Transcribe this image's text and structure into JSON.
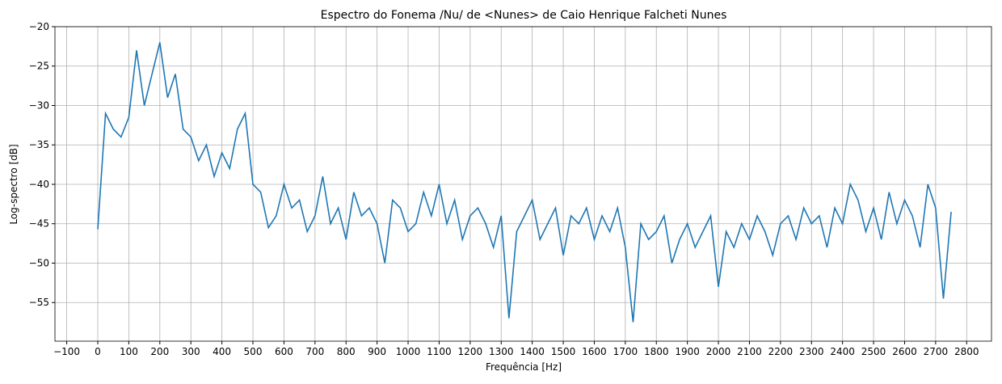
{
  "chart_data": {
    "type": "line",
    "title": "Espectro do Fonema /Nu/ de <Nunes> de Caio Henrique Falcheti Nunes",
    "xlabel": "Frequência [Hz]",
    "ylabel": "Log-spectro [dB]",
    "x": [
      0,
      25,
      50,
      75,
      100,
      125,
      150,
      175,
      200,
      225,
      250,
      275,
      300,
      325,
      350,
      375,
      400,
      425,
      450,
      475,
      500,
      525,
      550,
      575,
      600,
      625,
      650,
      675,
      700,
      725,
      750,
      775,
      800,
      825,
      850,
      875,
      900,
      925,
      950,
      975,
      1000,
      1025,
      1050,
      1075,
      1100,
      1125,
      1150,
      1175,
      1200,
      1225,
      1250,
      1275,
      1300,
      1325,
      1350,
      1375,
      1400,
      1425,
      1450,
      1475,
      1500,
      1525,
      1550,
      1575,
      1600,
      1625,
      1650,
      1675,
      1700,
      1725,
      1750,
      1775,
      1800,
      1825,
      1850,
      1875,
      1900,
      1925,
      1950,
      1975,
      2000,
      2025,
      2050,
      2075,
      2100,
      2125,
      2150,
      2175,
      2200,
      2225,
      2250,
      2275,
      2300,
      2325,
      2350,
      2375,
      2400,
      2425,
      2450,
      2475,
      2500,
      2525,
      2550,
      2575,
      2600,
      2625,
      2650,
      2675,
      2700,
      2725,
      2750
    ],
    "series": [
      {
        "name": "Log-spectro",
        "color": "#1f77b4",
        "values": [
          -45.7,
          -31,
          -33,
          -34,
          -31.5,
          -23,
          -30,
          -26,
          -22,
          -29,
          -26,
          -33,
          -34,
          -37,
          -35,
          -39,
          -36,
          -38,
          -33,
          -31,
          -40,
          -41,
          -45.5,
          -44,
          -40,
          -43,
          -42,
          -46,
          -44,
          -39,
          -45,
          -43,
          -47,
          -41,
          -44,
          -43,
          -45,
          -50,
          -42,
          -43,
          -46,
          -45,
          -41,
          -44,
          -40,
          -45,
          -42,
          -47,
          -44,
          -43,
          -45,
          -48,
          -44,
          -57,
          -46,
          -44,
          -42,
          -47,
          -45,
          -43,
          -49,
          -44,
          -45,
          -43,
          -47,
          -44,
          -46,
          -43,
          -48,
          -57.5,
          -45,
          -47,
          -46,
          -44,
          -50,
          -47,
          -45,
          -48,
          -46,
          -44,
          -53,
          -46,
          -48,
          -45,
          -47,
          -44,
          -46,
          -49,
          -45,
          -44,
          -47,
          -43,
          -45,
          -44,
          -48,
          -43,
          -45,
          -40,
          -42,
          -46,
          -43,
          -47,
          -41,
          -45,
          -42,
          -44,
          -48,
          -40,
          -43,
          -54.5,
          -43.5
        ]
      }
    ],
    "xlim": [
      -138,
      2880
    ],
    "ylim": [
      -59.9,
      -20
    ],
    "xticks": [
      {
        "value": -100,
        "label": "−100"
      },
      0,
      100,
      200,
      300,
      400,
      500,
      600,
      700,
      800,
      900,
      1000,
      1100,
      1200,
      1300,
      1400,
      1500,
      1600,
      1700,
      1800,
      1900,
      2000,
      2100,
      2200,
      2300,
      2400,
      2500,
      2600,
      2700,
      2800
    ],
    "yticks": [
      {
        "value": -55,
        "label": "−55"
      },
      {
        "value": -50,
        "label": "−50"
      },
      {
        "value": -45,
        "label": "−45"
      },
      {
        "value": -40,
        "label": "−40"
      },
      {
        "value": -35,
        "label": "−35"
      },
      {
        "value": -30,
        "label": "−30"
      },
      {
        "value": -25,
        "label": "−25"
      },
      {
        "value": -20,
        "label": "−20"
      }
    ],
    "grid": true
  }
}
